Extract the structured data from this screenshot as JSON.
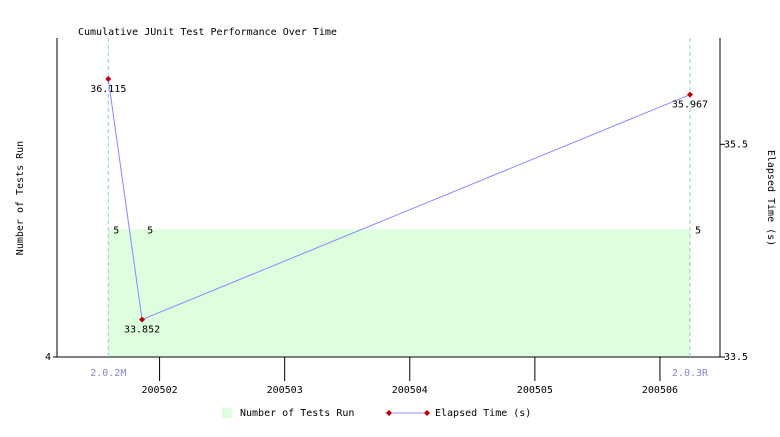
{
  "chart_data": {
    "type": "combo",
    "title": "Cumulative JUnit Test Performance Over Time",
    "ylabel": "Number of Tests Run",
    "y2label": "Elapsed Time (s)",
    "x": [
      1.59,
      1.86,
      6.24
    ],
    "xlim": [
      1.18,
      6.48
    ],
    "xticks": [
      {
        "value": 2,
        "label": "200502"
      },
      {
        "value": 3,
        "label": "200503"
      },
      {
        "value": 4,
        "label": "200504"
      },
      {
        "value": 5,
        "label": "200505"
      },
      {
        "value": 6,
        "label": "200506"
      }
    ],
    "ylim": [
      4,
      6.5
    ],
    "yticks": [
      4
    ],
    "y2lim": [
      33.5,
      36.5
    ],
    "y2ticks": [
      33.5,
      35.5
    ],
    "markers": [
      {
        "label": "2.0.2M",
        "x": 1.59
      },
      {
        "label": "2.0.3R",
        "x": 6.24
      }
    ],
    "series": [
      {
        "name": "Number of Tests Run",
        "type": "area",
        "color": "#ddffdd",
        "values": [
          5,
          5,
          5
        ]
      },
      {
        "name": "Elapsed Time (s)",
        "type": "line",
        "axis": "y2",
        "color": "#8888ff",
        "marker_color": "#aa0000",
        "values": [
          36.115,
          33.852,
          35.967
        ]
      }
    ]
  }
}
